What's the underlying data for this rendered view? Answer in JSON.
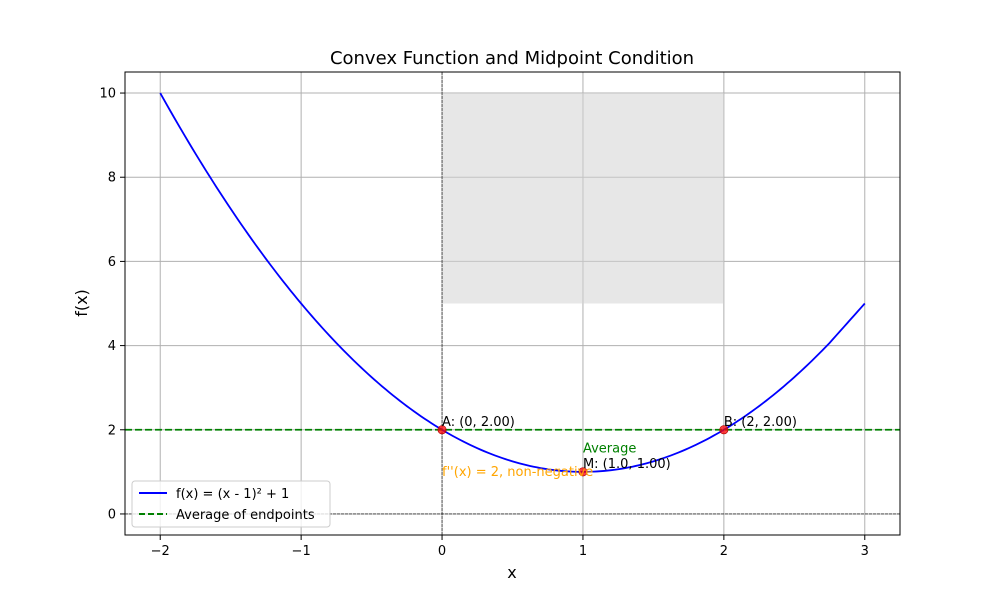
{
  "chart_data": {
    "type": "line",
    "title": "Convex Function and Midpoint Condition",
    "xlabel": "x",
    "ylabel": "f(x)",
    "xlim": [
      -2.25,
      3.25
    ],
    "ylim": [
      -0.5,
      10.5
    ],
    "xticks": [
      -2,
      -1,
      0,
      1,
      2,
      3
    ],
    "xtick_labels": [
      "−2",
      "−1",
      "0",
      "1",
      "2",
      "3"
    ],
    "yticks": [
      0,
      2,
      4,
      6,
      8,
      10
    ],
    "ytick_labels": [
      "0",
      "2",
      "4",
      "6",
      "8",
      "10"
    ],
    "grid": true,
    "legend_position": "lower-left",
    "series": [
      {
        "name": "f(x) = (x - 1)² + 1",
        "kind": "line",
        "color": "#0000ff",
        "x": [
          -2,
          -1.75,
          -1.5,
          -1.25,
          -1,
          -0.75,
          -0.5,
          -0.25,
          0,
          0.25,
          0.5,
          0.75,
          1,
          1.25,
          1.5,
          1.75,
          2,
          2.25,
          2.5,
          2.75,
          3
        ],
        "y": [
          10,
          8.5625,
          7.25,
          6.0625,
          5,
          4.0625,
          3.25,
          2.5625,
          2,
          1.5625,
          1.25,
          1.0625,
          1,
          1.0625,
          1.25,
          1.5625,
          2,
          2.5625,
          3.25,
          4.0625,
          5
        ]
      },
      {
        "name": "Average of endpoints",
        "kind": "hline",
        "color": "#008000",
        "dashed": true,
        "y": 2
      }
    ],
    "points": [
      {
        "x": 0,
        "y": 2,
        "label": "A: (0, 2.00)"
      },
      {
        "x": 2,
        "y": 2,
        "label": "B: (2, 2.00)"
      },
      {
        "x": 1,
        "y": 1,
        "label": "M: (1.0, 1.00)"
      }
    ],
    "point_color": "#ff0000",
    "shaded_region": {
      "x": [
        0,
        2
      ],
      "y": [
        5,
        10
      ],
      "color": "#d3d3d3"
    },
    "reference_lines": {
      "vertical_x": 0,
      "horizontal_y": 0
    },
    "annotations": [
      {
        "text": "Average",
        "x": 1,
        "y": 1.55,
        "color": "#008000"
      },
      {
        "text": "f''(x) = 2, non-negative",
        "x": 0,
        "y": 1,
        "color": "#ffa500"
      }
    ]
  }
}
